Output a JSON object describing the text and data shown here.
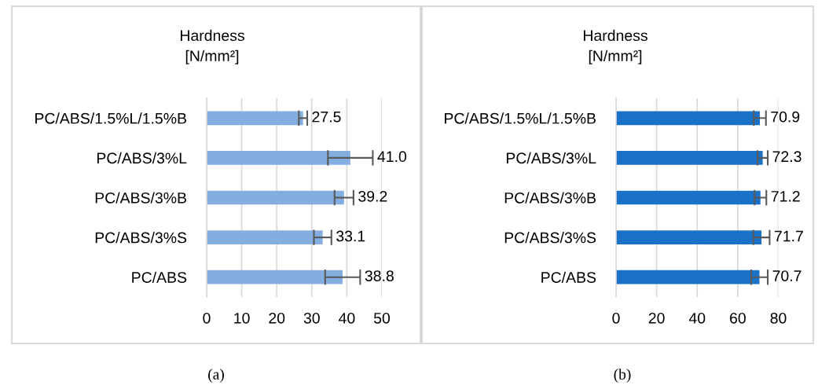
{
  "chart_data": [
    {
      "type": "bar",
      "orientation": "horizontal",
      "title": "Hardness\n[N/mm²]",
      "categories": [
        "PC/ABS/1.5%L/1.5%B",
        "PC/ABS/3%L",
        "PC/ABS/3%B",
        "PC/ABS/3%S",
        "PC/ABS"
      ],
      "values": [
        27.5,
        41.0,
        39.2,
        33.1,
        38.8
      ],
      "value_labels": [
        "27.5",
        "41.0",
        "39.2",
        "33.1",
        "38.8"
      ],
      "errors": [
        1.2,
        6.4,
        2.7,
        2.5,
        5.0
      ],
      "color": "#84ade0",
      "xlim": [
        0,
        50
      ],
      "xticks": [
        0,
        10,
        20,
        30,
        40,
        50
      ],
      "grid": "x",
      "annotations": [
        "(a)"
      ]
    },
    {
      "type": "bar",
      "orientation": "horizontal",
      "title": "Hardness\n[N/mm²]",
      "categories": [
        "PC/ABS/1.5%L/1.5%B",
        "PC/ABS/3%L",
        "PC/ABS/3%B",
        "PC/ABS/3%S",
        "PC/ABS"
      ],
      "values": [
        70.9,
        72.3,
        71.2,
        71.7,
        70.7
      ],
      "value_labels": [
        "70.9",
        "72.3",
        "71.2",
        "71.7",
        "70.7"
      ],
      "errors": [
        3.0,
        2.5,
        2.9,
        4.0,
        4.1
      ],
      "color": "#1a71c8",
      "xlim": [
        0,
        80
      ],
      "xticks": [
        0,
        20,
        40,
        60,
        80
      ],
      "grid": "x",
      "annotations": [
        "(b)"
      ]
    }
  ]
}
